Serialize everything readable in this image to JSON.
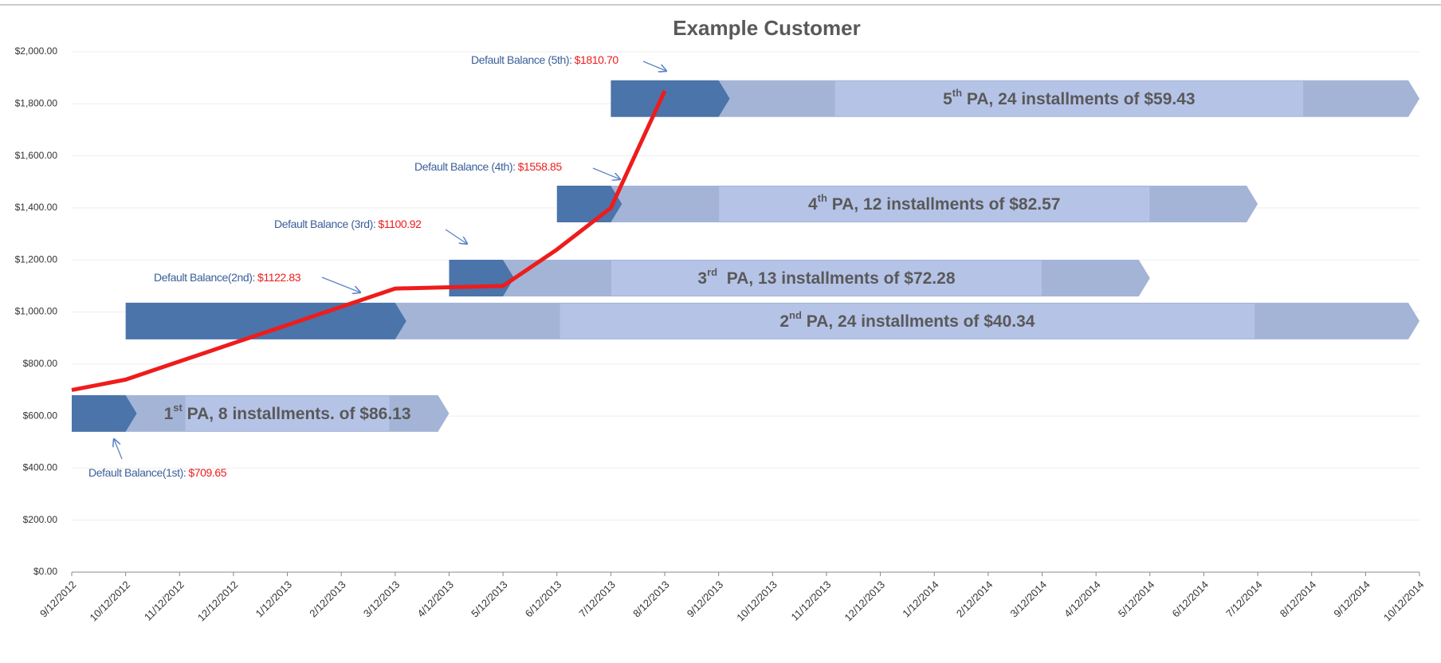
{
  "chart_data": {
    "type": "line",
    "title": "Example Customer",
    "categories": [
      "9/12/2012",
      "10/12/2012",
      "11/12/2012",
      "12/12/2012",
      "1/12/2013",
      "2/12/2013",
      "3/12/2013",
      "4/12/2013",
      "5/12/2013",
      "6/12/2013",
      "7/12/2013",
      "8/12/2013",
      "9/12/2013",
      "10/12/2013",
      "11/12/2013",
      "12/12/2013",
      "1/12/2014",
      "2/12/2014",
      "3/12/2014",
      "4/12/2014",
      "5/12/2014",
      "6/12/2014",
      "7/12/2014",
      "8/12/2014",
      "9/12/2014",
      "10/12/2014"
    ],
    "series": [
      {
        "color": "#ee1c1c",
        "values": [
          700,
          740,
          810,
          880,
          950,
          1020,
          1090,
          1095,
          1100,
          1240,
          1400,
          1850,
          null,
          null,
          null,
          null,
          null,
          null,
          null,
          null,
          null,
          null,
          null,
          null,
          null,
          null
        ]
      }
    ],
    "ylim": [
      0,
      2000
    ],
    "yticks": [
      {
        "value": 0,
        "label": "$0.00"
      },
      {
        "value": 200,
        "label": "$200.00"
      },
      {
        "value": 400,
        "label": "$400.00"
      },
      {
        "value": 600,
        "label": "$600.00"
      },
      {
        "value": 800,
        "label": "$800.00"
      },
      {
        "value": 1000,
        "label": "$1,000.00"
      },
      {
        "value": 1200,
        "label": "$1,200.00"
      },
      {
        "value": 1400,
        "label": "$1,400.00"
      },
      {
        "value": 1600,
        "label": "$1,600.00"
      },
      {
        "value": 1800,
        "label": "$1,800.00"
      },
      {
        "value": 2000,
        "label": "$2,000.00"
      }
    ],
    "grid": true,
    "bars": [
      {
        "ordinal": "1",
        "suffix": "st",
        "label": " PA, 8 installments. of $86.13",
        "start": "9/12/2012",
        "split": "10/12/2012",
        "end": "4/12/2013",
        "value": 610,
        "color": "#4a74aa",
        "light_color": "#a3b4d6"
      },
      {
        "ordinal": "2",
        "suffix": "nd",
        "label": " PA, 24 installments of $40.34",
        "start": "10/12/2012",
        "split": "3/12/2013",
        "end": "10/12/2014",
        "value": 965,
        "color": "#4a74aa",
        "light_color": "#a3b4d6"
      },
      {
        "ordinal": "3",
        "suffix": "rd",
        "label": "  PA, 13 installments of $72.28",
        "start": "4/12/2013",
        "split": "5/12/2013",
        "end": "5/12/2014",
        "value": 1130,
        "color": "#4a74aa",
        "light_color": "#a3b4d6"
      },
      {
        "ordinal": "4",
        "suffix": "th",
        "label": " PA, 12 installments of $82.57",
        "start": "6/12/2013",
        "split": "7/12/2013",
        "end": "7/12/2014",
        "value": 1415,
        "color": "#4a74aa",
        "light_color": "#a3b4d6"
      },
      {
        "ordinal": "5",
        "suffix": "th",
        "label": " PA, 24 installments of $59.43",
        "start": "7/12/2013",
        "split": "9/12/2013",
        "end": "10/12/2014",
        "value": 1820,
        "color": "#4a74aa",
        "light_color": "#a3b4d6"
      }
    ],
    "annotations": [
      {
        "label": "Default Balance(1st):",
        "amount": "$709.65"
      },
      {
        "label": "Default Balance(2nd):",
        "amount": "$1122.83"
      },
      {
        "label": "Default Balance (3rd):",
        "amount": "$1100.92"
      },
      {
        "label": "Default Balance (4th):",
        "amount": "$1558.85"
      },
      {
        "label": "Default Balance (5th):",
        "amount": "$1810.70"
      }
    ]
  }
}
